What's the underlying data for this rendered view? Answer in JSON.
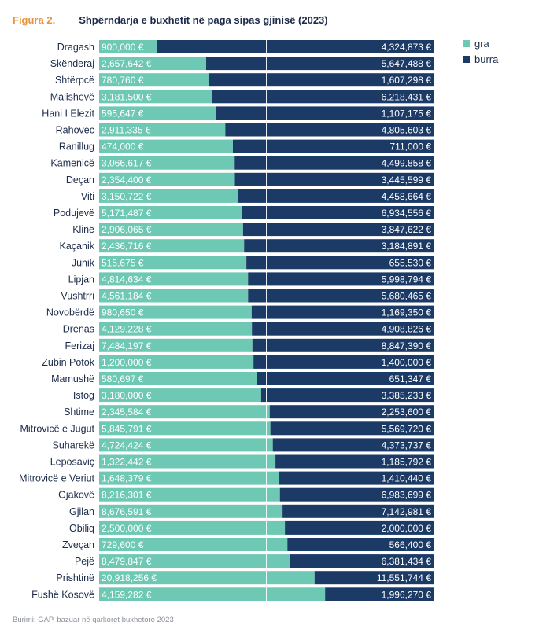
{
  "figure": {
    "label": "Figura 2.",
    "title": "Shpërndarja e buxhetit në paga sipas gjinisë (2023)"
  },
  "source": "Burimi: GAP, bazuar në qarkoret buxhetore 2023",
  "colors": {
    "gra": "#6dc9b3",
    "burra": "#1b3a66"
  },
  "chart_data": {
    "type": "bar",
    "orientation": "horizontal",
    "stacked": true,
    "normalized_percent": true,
    "legend_position": "top-right",
    "grid": false,
    "categories": [
      "Dragash",
      "Skënderaj",
      "Shtërpcë",
      "Malishevë",
      "Hani I Elezit",
      "Rahovec",
      "Ranillug",
      "Kamenicë",
      "Deçan",
      "Viti",
      "Podujevë",
      "Klinë",
      "Kaçanik",
      "Junik",
      "Lipjan",
      "Vushtrri",
      "Novobërdë",
      "Drenas",
      "Ferizaj",
      "Zubin Potok",
      "Mamushë",
      "Istog",
      "Shtime",
      "Mitrovicë e Jugut",
      "Suharekë",
      "Leposaviç",
      "Mitrovicë e Veriut",
      "Gjakovë",
      "Gjilan",
      "Obiliq",
      "Zveçan",
      "Pejë",
      "Prishtinë",
      "Fushë Kosovë"
    ],
    "series": [
      {
        "name": "gra",
        "values": [
          900000,
          2657642,
          780760,
          3181500,
          595647,
          2911335,
          474000,
          3066617,
          2354400,
          3150722,
          5171487,
          2906065,
          2436716,
          515675,
          4814634,
          4561184,
          980650,
          4129228,
          7484197,
          1200000,
          580697,
          3180000,
          2345584,
          5845791,
          4724424,
          1322442,
          1648379,
          8216301,
          8676591,
          2500000,
          729600,
          8479847,
          20918256,
          4159282
        ],
        "labels": [
          "900,000 €",
          "2,657,642 €",
          "780,760 €",
          "3,181,500 €",
          "595,647 €",
          "2,911,335 €",
          "474,000 €",
          "3,066,617 €",
          "2,354,400 €",
          "3,150,722 €",
          "5,171,487 €",
          "2,906,065 €",
          "2,436,716 €",
          "515,675 €",
          "4,814,634 €",
          "4,561,184 €",
          "980,650 €",
          "4,129,228 €",
          "7,484,197 €",
          "1,200,000 €",
          "580,697 €",
          "3,180,000 €",
          "2,345,584 €",
          "5,845,791 €",
          "4,724,424 €",
          "1,322,442 €",
          "1,648,379 €",
          "8,216,301 €",
          "8,676,591 €",
          "2,500,000 €",
          "729,600 €",
          "8,479,847 €",
          "20,918,256 €",
          "4,159,282 €"
        ]
      },
      {
        "name": "burra",
        "values": [
          4324873,
          5647488,
          1607298,
          6218431,
          1107175,
          4805603,
          711000,
          4499858,
          3445599,
          4458664,
          6934556,
          3847622,
          3184891,
          655530,
          5998794,
          5680465,
          1169350,
          4908826,
          8847390,
          1400000,
          651347,
          3385233,
          2253600,
          5569720,
          4373737,
          1185792,
          1410440,
          6983699,
          7142981,
          2000000,
          566400,
          6381434,
          11551744,
          1996270
        ],
        "labels": [
          "4,324,873 €",
          "5,647,488 €",
          "1,607,298 €",
          "6,218,431 €",
          "1,107,175 €",
          "4,805,603 €",
          "711,000 €",
          "4,499,858 €",
          "3,445,599 €",
          "4,458,664 €",
          "6,934,556 €",
          "3,847,622 €",
          "3,184,891 €",
          "655,530 €",
          "5,998,794 €",
          "5,680,465 €",
          "1,169,350 €",
          "4,908,826 €",
          "8,847,390 €",
          "1,400,000 €",
          "651,347 €",
          "3,385,233 €",
          "2,253,600 €",
          "5,569,720 €",
          "4,373,737 €",
          "1,185,792 €",
          "1,410,440 €",
          "6,983,699 €",
          "7,142,981 €",
          "2,000,000 €",
          "566,400 €",
          "6,381,434 €",
          "11,551,744 €",
          "1,996,270 €"
        ]
      }
    ]
  }
}
